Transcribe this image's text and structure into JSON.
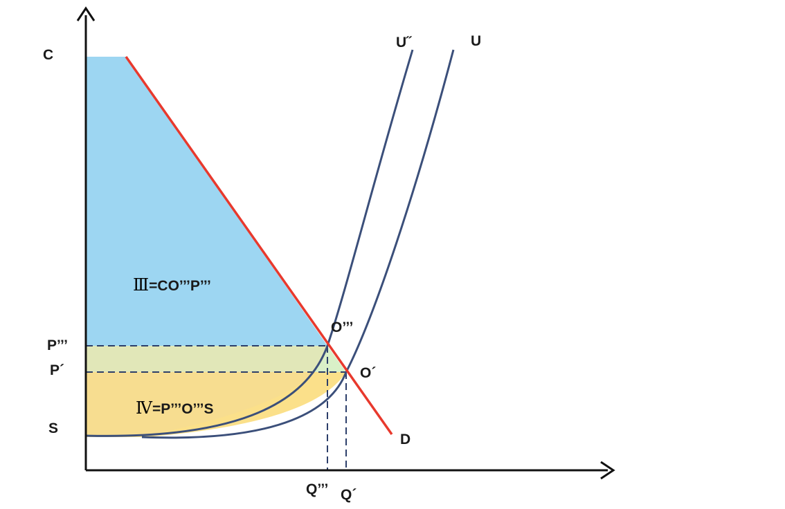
{
  "axis_labels": {
    "c": "C",
    "p3": "P’’’",
    "p1": "P´",
    "s": "S",
    "q3": "Q’’’",
    "q1": "Q´"
  },
  "curve_labels": {
    "u2": "U˝",
    "u": "U",
    "d": "D"
  },
  "point_labels": {
    "o3": "O’’’",
    "o1": "O´"
  },
  "area_labels": {
    "iii_numeral": "Ⅲ",
    "iii_text": "=CO’’’P’’’",
    "iv_numeral": "Ⅳ",
    "iv_text": "=P’’’O’’’S"
  },
  "colors": {
    "demand_line": "#e8392d",
    "supply_curves": "#3b4f7a",
    "consumer_area": "#9dd6f2",
    "middle_band": "#d9f0c8",
    "producer_area": "#fbe08a",
    "axes": "#111111",
    "guide_lines": "#2c3e6a"
  }
}
